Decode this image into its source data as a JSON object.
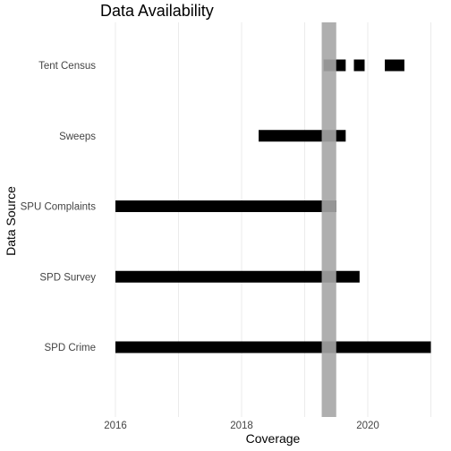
{
  "chart_data": {
    "type": "bar",
    "subtype": "gantt-timeline",
    "title": "Data Availability",
    "xlabel": "Coverage",
    "ylabel": "Data Source",
    "x_ticks": [
      2016,
      2018,
      2020
    ],
    "xlim": [
      2015.4,
      2021.05
    ],
    "categories": [
      "Tent Census",
      "Sweeps",
      "SPU Complaints",
      "SPD Survey",
      "SPD Crime"
    ],
    "segments": [
      {
        "category": "Tent Census",
        "start": 2019.3,
        "end": 2019.65
      },
      {
        "category": "Tent Census",
        "start": 2019.78,
        "end": 2019.95
      },
      {
        "category": "Tent Census",
        "start": 2020.27,
        "end": 2020.58
      },
      {
        "category": "Sweeps",
        "start": 2018.27,
        "end": 2019.65
      },
      {
        "category": "SPU Complaints",
        "start": 2016.0,
        "end": 2019.5
      },
      {
        "category": "SPD Survey",
        "start": 2016.0,
        "end": 2019.87
      },
      {
        "category": "SPD Crime",
        "start": 2016.0,
        "end": 2021.0
      }
    ],
    "highlight_band": {
      "start": 2019.27,
      "end": 2019.5,
      "color": "#a6a6a6",
      "opacity": 0.9
    },
    "bar_color": "#000000",
    "grid": true,
    "legend": "none"
  }
}
